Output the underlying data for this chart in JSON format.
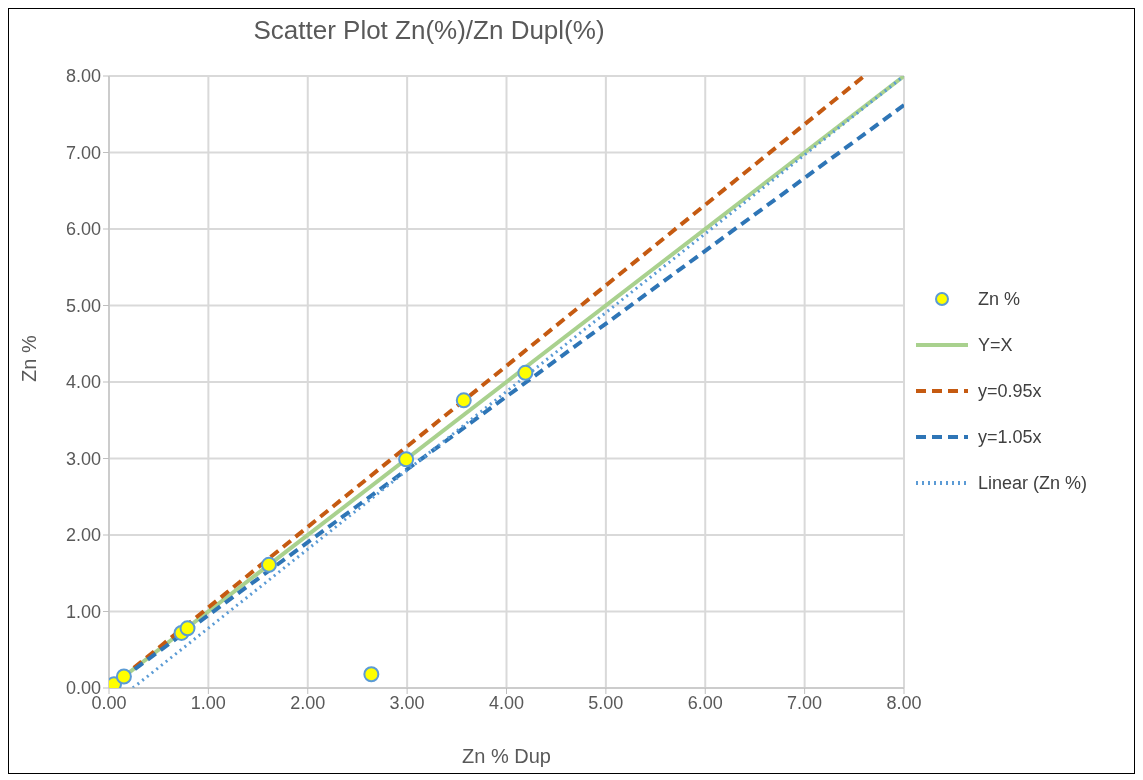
{
  "chart_data": {
    "type": "scatter",
    "title": "Scatter Plot Zn(%)/Zn Dupl(%)",
    "xlabel": "Zn % Dup",
    "ylabel": "Zn %",
    "xlim": [
      0,
      8
    ],
    "ylim": [
      0,
      8
    ],
    "xticks": [
      {
        "value": 0,
        "label": "0.00"
      },
      {
        "value": 1,
        "label": "1.00"
      },
      {
        "value": 2,
        "label": "2.00"
      },
      {
        "value": 3,
        "label": "3.00"
      },
      {
        "value": 4,
        "label": "4.00"
      },
      {
        "value": 5,
        "label": "5.00"
      },
      {
        "value": 6,
        "label": "6.00"
      },
      {
        "value": 7,
        "label": "7.00"
      },
      {
        "value": 8,
        "label": "8.00"
      }
    ],
    "yticks": [
      {
        "value": 0,
        "label": "0.00"
      },
      {
        "value": 1,
        "label": "1.00"
      },
      {
        "value": 2,
        "label": "2.00"
      },
      {
        "value": 3,
        "label": "3.00"
      },
      {
        "value": 4,
        "label": "4.00"
      },
      {
        "value": 5,
        "label": "5.00"
      },
      {
        "value": 6,
        "label": "6.00"
      },
      {
        "value": 7,
        "label": "7.00"
      },
      {
        "value": 8,
        "label": "8.00"
      }
    ],
    "grid": true,
    "legend": "right",
    "series": [
      {
        "name": "Zn %",
        "marker": "circle",
        "color": "#ffff00",
        "x": [
          0.05,
          0.15,
          0.73,
          0.79,
          1.61,
          2.64,
          2.99,
          3.57,
          4.19
        ],
        "values": [
          0.05,
          0.15,
          0.72,
          0.78,
          1.61,
          0.18,
          2.99,
          3.76,
          4.12
        ]
      },
      {
        "name": "Y=X",
        "type": "line",
        "line_style": "solid",
        "color": "#a9d18e",
        "x": [
          0,
          8
        ],
        "values": [
          0,
          8
        ]
      },
      {
        "name": "y=0.95x",
        "type": "line",
        "line_style": "dashed",
        "color": "#c55a11",
        "x": [
          0,
          7.6
        ],
        "values": [
          0,
          8
        ]
      },
      {
        "name": "y=1.05x",
        "type": "line",
        "line_style": "dashed",
        "color": "#2e75b6",
        "x": [
          0,
          8
        ],
        "values": [
          0,
          7.62
        ]
      },
      {
        "name": "Linear (Zn %)",
        "type": "line",
        "line_style": "dotted",
        "color": "#5b9bd5",
        "x": [
          0.24,
          8
        ],
        "values": [
          0,
          8
        ]
      }
    ]
  }
}
